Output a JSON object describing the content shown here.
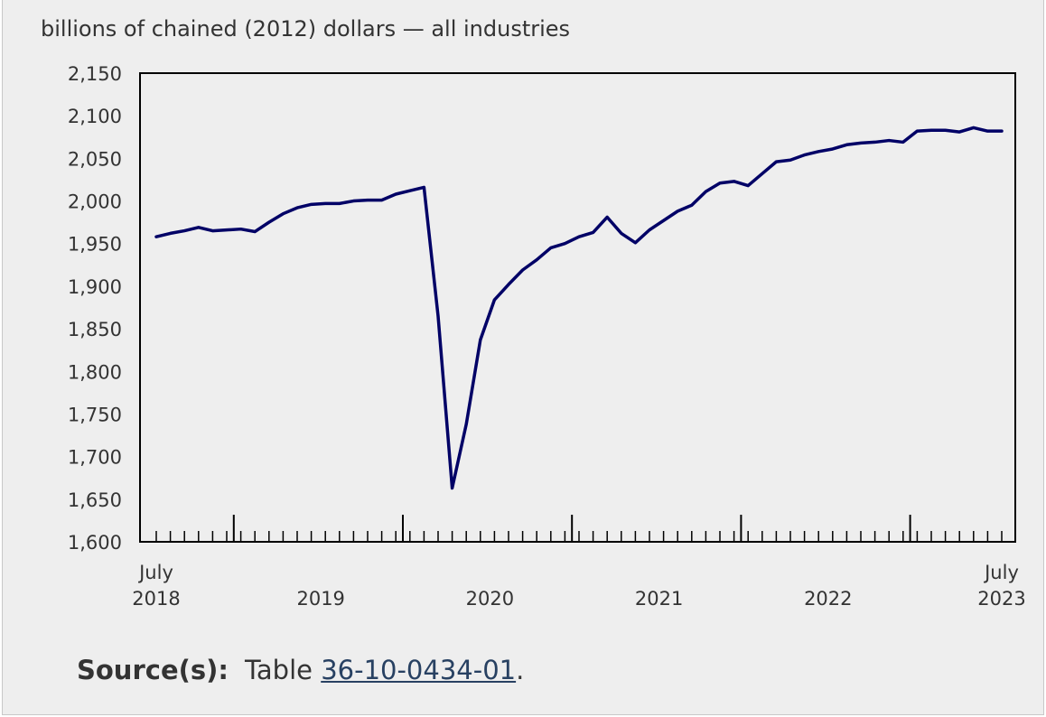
{
  "chart_data": {
    "type": "line",
    "title": "",
    "ylabel": "billions of chained (2012) dollars — all industries",
    "xlabel": "",
    "ylim": [
      1600,
      2150
    ],
    "y_ticks": [
      1600,
      1650,
      1700,
      1750,
      1800,
      1850,
      1900,
      1950,
      2000,
      2050,
      2100,
      2150
    ],
    "y_tick_labels": [
      "1,600",
      "1,650",
      "1,700",
      "1,750",
      "1,800",
      "1,850",
      "1,900",
      "1,950",
      "2,000",
      "2,050",
      "2,100",
      "2,150"
    ],
    "x_start": "2018-07",
    "x_end": "2023-07",
    "x_labels": [
      {
        "month": "2018-07",
        "line1": "July",
        "line2": "2018"
      },
      {
        "month": "2019-07",
        "line1": "",
        "line2": "2019"
      },
      {
        "month": "2020-07",
        "line1": "",
        "line2": "2020"
      },
      {
        "month": "2021-07",
        "line1": "",
        "line2": "2021"
      },
      {
        "month": "2022-07",
        "line1": "",
        "line2": "2022"
      },
      {
        "month": "2023-07",
        "line1": "July",
        "line2": "2023"
      }
    ],
    "grid": false,
    "line_color": "#000066",
    "series": [
      {
        "name": "",
        "x": [
          "2018-07",
          "2018-08",
          "2018-09",
          "2018-10",
          "2018-11",
          "2018-12",
          "2019-01",
          "2019-02",
          "2019-03",
          "2019-04",
          "2019-05",
          "2019-06",
          "2019-07",
          "2019-08",
          "2019-09",
          "2019-10",
          "2019-11",
          "2019-12",
          "2020-01",
          "2020-02",
          "2020-03",
          "2020-04",
          "2020-05",
          "2020-06",
          "2020-07",
          "2020-08",
          "2020-09",
          "2020-10",
          "2020-11",
          "2020-12",
          "2021-01",
          "2021-02",
          "2021-03",
          "2021-04",
          "2021-05",
          "2021-06",
          "2021-07",
          "2021-08",
          "2021-09",
          "2021-10",
          "2021-11",
          "2021-12",
          "2022-01",
          "2022-02",
          "2022-03",
          "2022-04",
          "2022-05",
          "2022-06",
          "2022-07",
          "2022-08",
          "2022-09",
          "2022-10",
          "2022-11",
          "2022-12",
          "2023-01",
          "2023-02",
          "2023-03",
          "2023-04",
          "2023-05",
          "2023-06",
          "2023-07"
        ],
        "values": [
          1958,
          1962,
          1965,
          1969,
          1965,
          1966,
          1967,
          1964,
          1975,
          1985,
          1992,
          1996,
          1997,
          1997,
          2000,
          2001,
          2001,
          2008,
          2012,
          2016,
          1865,
          1663,
          1738,
          1837,
          1884,
          1902,
          1919,
          1931,
          1945,
          1950,
          1958,
          1963,
          1981,
          1962,
          1951,
          1966,
          1977,
          1988,
          1995,
          2011,
          2021,
          2023,
          2018,
          2032,
          2046,
          2048,
          2054,
          2058,
          2061,
          2066,
          2068,
          2069,
          2071,
          2069,
          2082,
          2083,
          2083,
          2081,
          2086,
          2082,
          2082
        ]
      }
    ]
  },
  "source": {
    "label": "Source(s):",
    "prefix": "Table ",
    "link_text": "36-10-0434-01",
    "suffix": "."
  }
}
